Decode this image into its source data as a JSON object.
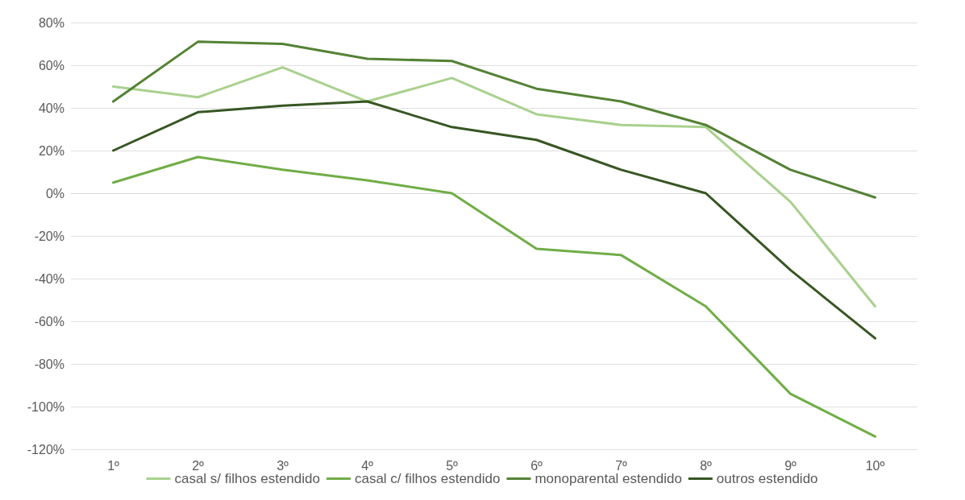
{
  "chart_data": {
    "type": "line",
    "categories": [
      "1º",
      "2º",
      "3º",
      "4º",
      "5º",
      "6º",
      "7º",
      "8º",
      "9º",
      "10º"
    ],
    "series": [
      {
        "name": "casal s/ filhos estendido",
        "color": "#a9d18e",
        "values": [
          50,
          45,
          59,
          43,
          54,
          37,
          32,
          31,
          -4,
          -53
        ]
      },
      {
        "name": "casal c/ filhos estendido",
        "color": "#70ad47",
        "values": [
          5,
          17,
          11,
          6,
          0,
          -26,
          -29,
          -53,
          -94,
          -114
        ]
      },
      {
        "name": "monoparental estendido",
        "color": "#548235",
        "values": [
          43,
          71,
          70,
          63,
          62,
          49,
          43,
          32,
          11,
          -2
        ]
      },
      {
        "name": "outros estendido",
        "color": "#375623",
        "values": [
          20,
          38,
          41,
          43,
          31,
          25,
          11,
          0,
          -36,
          -68
        ]
      }
    ],
    "ylim": [
      -120,
      80
    ],
    "yticks": [
      {
        "value": -120,
        "label": "-120%"
      },
      {
        "value": -100,
        "label": "-100%"
      },
      {
        "value": -80,
        "label": "-80%"
      },
      {
        "value": -60,
        "label": "-60%"
      },
      {
        "value": -40,
        "label": "-40%"
      },
      {
        "value": -20,
        "label": "-20%"
      },
      {
        "value": 0,
        "label": "0%"
      },
      {
        "value": 20,
        "label": "20%"
      },
      {
        "value": 40,
        "label": "40%"
      },
      {
        "value": 60,
        "label": "60%"
      },
      {
        "value": 80,
        "label": "80%"
      }
    ],
    "grid": "y",
    "legend": "bottom",
    "marker": "none",
    "line_style": "solid"
  }
}
